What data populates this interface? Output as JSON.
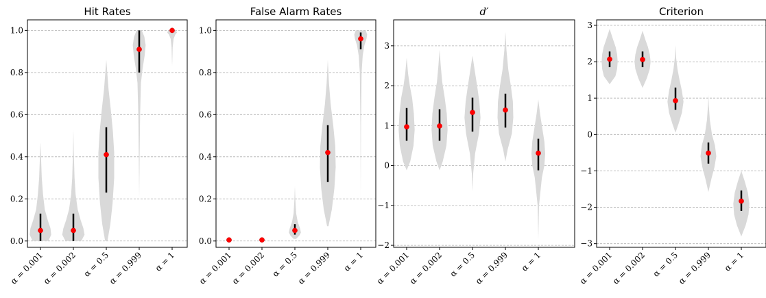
{
  "colors": {
    "violin": "#d9d9d9",
    "mean_point": "#ff0000",
    "error_bar": "#000000",
    "grid": "#b0b0b0"
  },
  "chart_data": [
    {
      "type": "violin",
      "title": "Hit Rates",
      "categories": [
        "α = 0.001",
        "α = 0.002",
        "α = 0.5",
        "α = 0.999",
        "α = 1"
      ],
      "ylim": [
        -0.03,
        1.05
      ],
      "yticks": [
        0.0,
        0.2,
        0.4,
        0.6,
        0.8,
        1.0
      ],
      "ytick_labels": [
        "0.0",
        "0.2",
        "0.4",
        "0.6",
        "0.8",
        "1.0"
      ],
      "grid": true,
      "means": [
        0.05,
        0.05,
        0.41,
        0.91,
        1.0
      ],
      "errors": [
        [
          0.0,
          0.13
        ],
        [
          0.0,
          0.13
        ],
        [
          0.23,
          0.54
        ],
        [
          0.8,
          1.0
        ],
        [
          1.0,
          1.0
        ]
      ],
      "violins": [
        {
          "y": [
            0.0,
            0.03,
            0.06,
            0.1,
            0.15,
            0.22,
            0.3,
            0.4,
            0.47
          ],
          "w": [
            0.55,
            0.75,
            0.7,
            0.5,
            0.3,
            0.18,
            0.09,
            0.04,
            0.0
          ]
        },
        {
          "y": [
            0.0,
            0.03,
            0.06,
            0.1,
            0.15,
            0.22,
            0.3,
            0.42,
            0.53
          ],
          "w": [
            0.55,
            0.78,
            0.7,
            0.5,
            0.3,
            0.16,
            0.08,
            0.03,
            0.0
          ]
        },
        {
          "y": [
            0.0,
            0.08,
            0.18,
            0.3,
            0.42,
            0.52,
            0.62,
            0.72,
            0.86
          ],
          "w": [
            0.08,
            0.28,
            0.44,
            0.55,
            0.55,
            0.46,
            0.32,
            0.16,
            0.0
          ]
        },
        {
          "y": [
            0.2,
            0.4,
            0.6,
            0.75,
            0.82,
            0.88,
            0.93,
            0.97,
            1.0
          ],
          "w": [
            0.0,
            0.03,
            0.06,
            0.12,
            0.24,
            0.38,
            0.45,
            0.36,
            0.18
          ]
        },
        {
          "y": [
            0.83,
            0.92,
            0.96,
            0.98,
            0.99,
            1.0
          ],
          "w": [
            0.0,
            0.04,
            0.1,
            0.22,
            0.35,
            0.25
          ]
        }
      ]
    },
    {
      "type": "violin",
      "title": "False Alarm Rates",
      "categories": [
        "α = 0.001",
        "α = 0.002",
        "α = 0.5",
        "α = 0.999",
        "α = 1"
      ],
      "ylim": [
        -0.03,
        1.05
      ],
      "yticks": [
        0.0,
        0.2,
        0.4,
        0.6,
        0.8,
        1.0
      ],
      "ytick_labels": [
        "0.0",
        "0.2",
        "0.4",
        "0.6",
        "0.8",
        "1.0"
      ],
      "grid": true,
      "means": [
        0.005,
        0.005,
        0.05,
        0.42,
        0.96
      ],
      "errors": [
        [
          0.0,
          0.01
        ],
        [
          0.0,
          0.01
        ],
        [
          0.03,
          0.08
        ],
        [
          0.28,
          0.55
        ],
        [
          0.91,
          0.99
        ]
      ],
      "violins": [
        {
          "y": [
            0.0,
            0.005,
            0.01,
            0.015
          ],
          "w": [
            0.15,
            0.22,
            0.12,
            0.0
          ]
        },
        {
          "y": [
            0.0,
            0.005,
            0.01,
            0.015
          ],
          "w": [
            0.15,
            0.22,
            0.12,
            0.0
          ]
        },
        {
          "y": [
            0.01,
            0.025,
            0.04,
            0.06,
            0.09,
            0.13,
            0.19,
            0.26
          ],
          "w": [
            0.08,
            0.3,
            0.42,
            0.36,
            0.2,
            0.09,
            0.04,
            0.0
          ]
        },
        {
          "y": [
            0.07,
            0.15,
            0.25,
            0.35,
            0.45,
            0.55,
            0.65,
            0.75,
            0.86
          ],
          "w": [
            0.05,
            0.28,
            0.46,
            0.55,
            0.52,
            0.38,
            0.2,
            0.08,
            0.0
          ]
        },
        {
          "y": [
            0.2,
            0.55,
            0.8,
            0.88,
            0.93,
            0.96,
            0.98,
            1.0
          ],
          "w": [
            0.0,
            0.02,
            0.06,
            0.14,
            0.26,
            0.4,
            0.45,
            0.35
          ]
        }
      ]
    },
    {
      "type": "violin",
      "title": "d′",
      "categories": [
        "α = 0.001",
        "α = 0.002",
        "α = 0.5",
        "α = 0.999",
        "α = 1"
      ],
      "ylim": [
        -2.05,
        3.65
      ],
      "yticks": [
        -2,
        -1,
        0,
        1,
        2,
        3
      ],
      "ytick_labels": [
        "−2",
        "−1",
        "0",
        "1",
        "2",
        "3"
      ],
      "grid": true,
      "means": [
        0.97,
        0.99,
        1.33,
        1.39,
        0.31
      ],
      "errors": [
        [
          0.62,
          1.44
        ],
        [
          0.62,
          1.41
        ],
        [
          0.85,
          1.7
        ],
        [
          0.95,
          1.8
        ],
        [
          -0.12,
          0.67
        ]
      ],
      "violins": [
        {
          "y": [
            -0.12,
            0.1,
            0.5,
            0.9,
            1.3,
            1.7,
            2.0,
            2.3,
            2.7
          ],
          "w": [
            0.0,
            0.25,
            0.48,
            0.56,
            0.5,
            0.38,
            0.22,
            0.1,
            0.0
          ]
        },
        {
          "y": [
            -0.12,
            0.1,
            0.5,
            0.9,
            1.3,
            1.7,
            2.1,
            2.5,
            2.9
          ],
          "w": [
            0.0,
            0.22,
            0.48,
            0.56,
            0.5,
            0.36,
            0.18,
            0.08,
            0.0
          ]
        },
        {
          "y": [
            -0.65,
            -0.2,
            0.3,
            0.8,
            1.2,
            1.6,
            2.0,
            2.4,
            2.75
          ],
          "w": [
            0.0,
            0.05,
            0.18,
            0.45,
            0.56,
            0.48,
            0.32,
            0.15,
            0.0
          ]
        },
        {
          "y": [
            0.1,
            0.4,
            0.8,
            1.2,
            1.6,
            2.0,
            2.4,
            2.9,
            3.35
          ],
          "w": [
            0.0,
            0.16,
            0.45,
            0.55,
            0.52,
            0.38,
            0.2,
            0.07,
            0.0
          ]
        },
        {
          "y": [
            -1.85,
            -1.0,
            -0.3,
            0.0,
            0.3,
            0.6,
            1.0,
            1.3,
            1.65
          ],
          "w": [
            0.0,
            0.05,
            0.25,
            0.42,
            0.48,
            0.42,
            0.25,
            0.12,
            0.0
          ]
        }
      ]
    },
    {
      "type": "violin",
      "title": "Criterion",
      "categories": [
        "α = 0.001",
        "α = 0.002",
        "α = 0.5",
        "α = 0.999",
        "α = 1"
      ],
      "ylim": [
        -3.1,
        3.15
      ],
      "yticks": [
        -3,
        -2,
        -1,
        0,
        1,
        2,
        3
      ],
      "ytick_labels": [
        "−3",
        "−2",
        "−1",
        "0",
        "1",
        "2",
        "3"
      ],
      "grid": true,
      "means": [
        2.07,
        2.06,
        0.93,
        -0.51,
        -1.83
      ],
      "errors": [
        [
          1.85,
          2.28
        ],
        [
          1.85,
          2.28
        ],
        [
          0.68,
          1.29
        ],
        [
          -0.8,
          -0.22
        ],
        [
          -2.1,
          -1.54
        ]
      ],
      "violins": [
        {
          "y": [
            1.38,
            1.6,
            1.8,
            2.0,
            2.2,
            2.4,
            2.6,
            2.9
          ],
          "w": [
            0.0,
            0.4,
            0.52,
            0.56,
            0.52,
            0.42,
            0.25,
            0.0
          ]
        },
        {
          "y": [
            1.28,
            1.55,
            1.8,
            2.0,
            2.2,
            2.4,
            2.6,
            2.85
          ],
          "w": [
            0.0,
            0.3,
            0.5,
            0.56,
            0.5,
            0.38,
            0.2,
            0.0
          ]
        },
        {
          "y": [
            0.05,
            0.3,
            0.6,
            0.9,
            1.2,
            1.5,
            1.8,
            2.1,
            2.45
          ],
          "w": [
            0.0,
            0.22,
            0.45,
            0.56,
            0.45,
            0.28,
            0.14,
            0.05,
            0.0
          ]
        },
        {
          "y": [
            -1.58,
            -1.2,
            -0.9,
            -0.6,
            -0.3,
            0.0,
            0.4,
            0.8,
            1.1
          ],
          "w": [
            0.0,
            0.22,
            0.42,
            0.55,
            0.46,
            0.25,
            0.1,
            0.03,
            0.0
          ]
        },
        {
          "y": [
            -2.8,
            -2.5,
            -2.2,
            -1.9,
            -1.6,
            -1.3,
            -1.0
          ],
          "w": [
            0.0,
            0.3,
            0.5,
            0.56,
            0.46,
            0.25,
            0.0
          ]
        }
      ]
    }
  ]
}
